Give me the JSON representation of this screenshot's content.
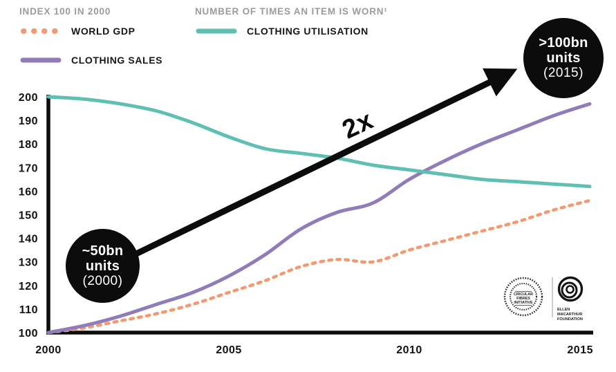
{
  "legend_panel": {
    "left_title": "INDEX 100 IN 2000",
    "right_title": "NUMBER OF TIMES AN ITEM IS WORN¹",
    "items": [
      {
        "label": "WORLD GDP",
        "color": "#f29b72",
        "style": "dotted"
      },
      {
        "label": "CLOTHING SALES",
        "color": "#8f7cb9",
        "style": "solid"
      },
      {
        "label": "CLOTHING UTILISATION",
        "color": "#5fbfb2",
        "style": "solid"
      }
    ]
  },
  "annotations": {
    "arrow_label": "2x",
    "start_bubble": {
      "value": "~50bn",
      "unit": "units",
      "year": "(2000)"
    },
    "end_bubble": {
      "value": ">100bn",
      "unit": "units",
      "year": "(2015)"
    }
  },
  "logos": {
    "circular_fibres": {
      "line1": "CIRCULAR",
      "line2": "FIBRES",
      "line3": "INITIATIVE"
    },
    "ellen_macarthur": {
      "line1": "ELLEN",
      "line2": "MACARTHUR",
      "line3": "FOUNDATION"
    }
  },
  "chart_data": {
    "type": "line",
    "x": [
      2000,
      2001,
      2002,
      2003,
      2004,
      2005,
      2006,
      2007,
      2008,
      2009,
      2010,
      2011,
      2012,
      2013,
      2014,
      2015
    ],
    "series": [
      {
        "name": "WORLD GDP",
        "color": "#f29b72",
        "dashed": true,
        "values": [
          100,
          102,
          105,
          108,
          112,
          117,
          122,
          128,
          131,
          130,
          135,
          139,
          143,
          147,
          152,
          156
        ]
      },
      {
        "name": "CLOTHING SALES",
        "color": "#8f7cb9",
        "dashed": false,
        "values": [
          100,
          103,
          107,
          112,
          117,
          124,
          133,
          144,
          151,
          155,
          165,
          173,
          180,
          186,
          192,
          197
        ]
      },
      {
        "name": "CLOTHING UTILISATION",
        "color": "#5fbfb2",
        "dashed": false,
        "values": [
          200,
          199,
          197,
          194,
          189,
          183,
          178,
          176,
          174,
          171,
          169,
          167,
          165,
          164,
          163,
          162
        ]
      }
    ],
    "x_ticks": [
      2000,
      2005,
      2010,
      2015
    ],
    "y_ticks": [
      100,
      110,
      120,
      130,
      140,
      150,
      160,
      170,
      180,
      190,
      200
    ],
    "ylim": [
      100,
      200
    ],
    "xlim": [
      2000,
      2015
    ],
    "grid": false,
    "legend_position": "top-left",
    "title": "",
    "xlabel": "",
    "ylabel": ""
  }
}
